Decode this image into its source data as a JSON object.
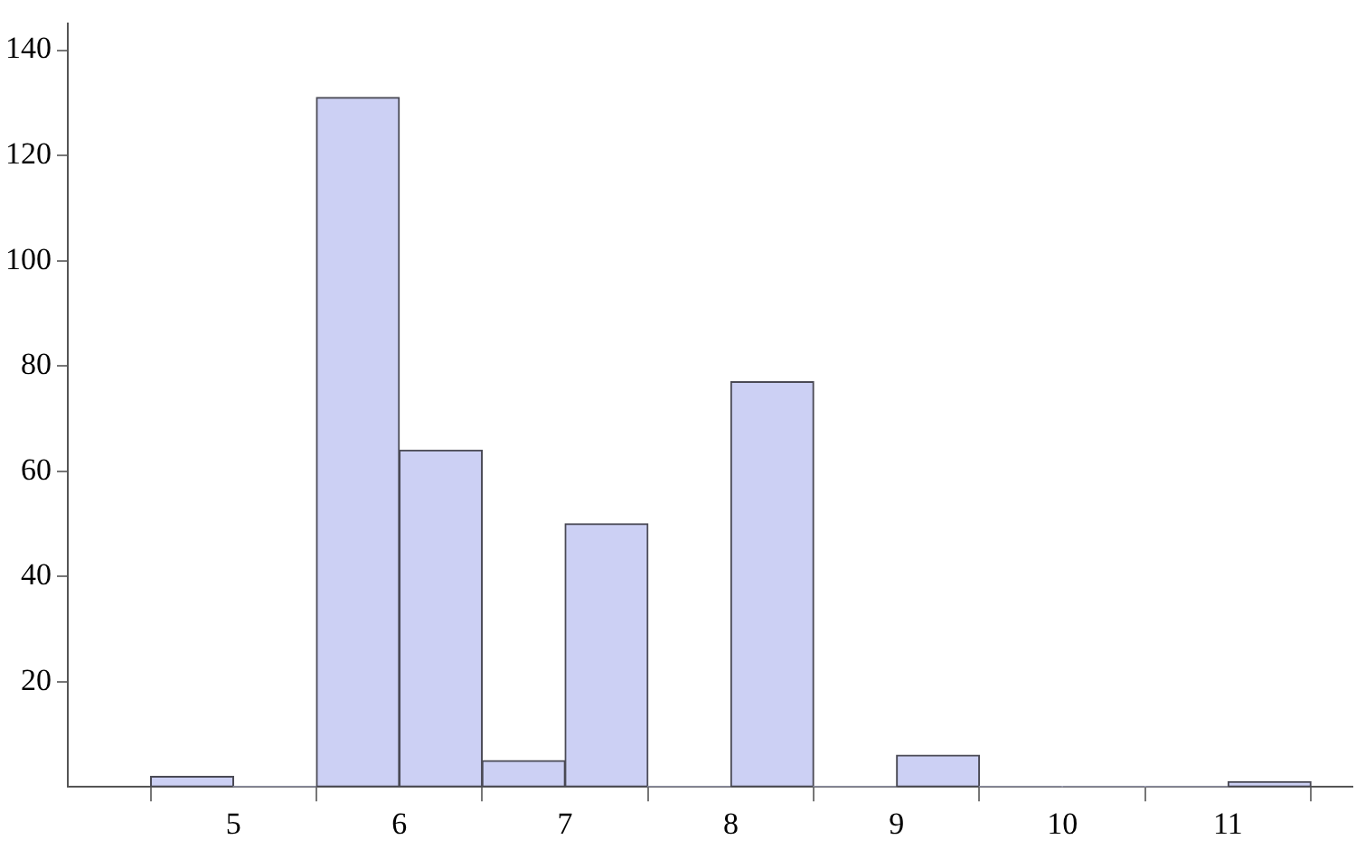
{
  "chart_data": {
    "type": "histogram",
    "bins": [
      4.5,
      5,
      5.5,
      6,
      6.5,
      7,
      7.5,
      8,
      8.5,
      9,
      9.5,
      10,
      10.5,
      11,
      11.5
    ],
    "values": [
      2,
      0,
      131,
      64,
      5,
      50,
      0,
      77,
      0,
      6,
      0,
      0,
      0,
      1
    ],
    "color": "#ccd0f4",
    "xlim": [
      4,
      11.75
    ],
    "xticks": [
      5,
      6,
      7,
      8,
      9,
      10,
      11
    ],
    "ylim": [
      0,
      145
    ],
    "yticks": [
      20,
      40,
      60,
      80,
      100,
      120,
      140
    ],
    "grid": false,
    "legend": false
  }
}
